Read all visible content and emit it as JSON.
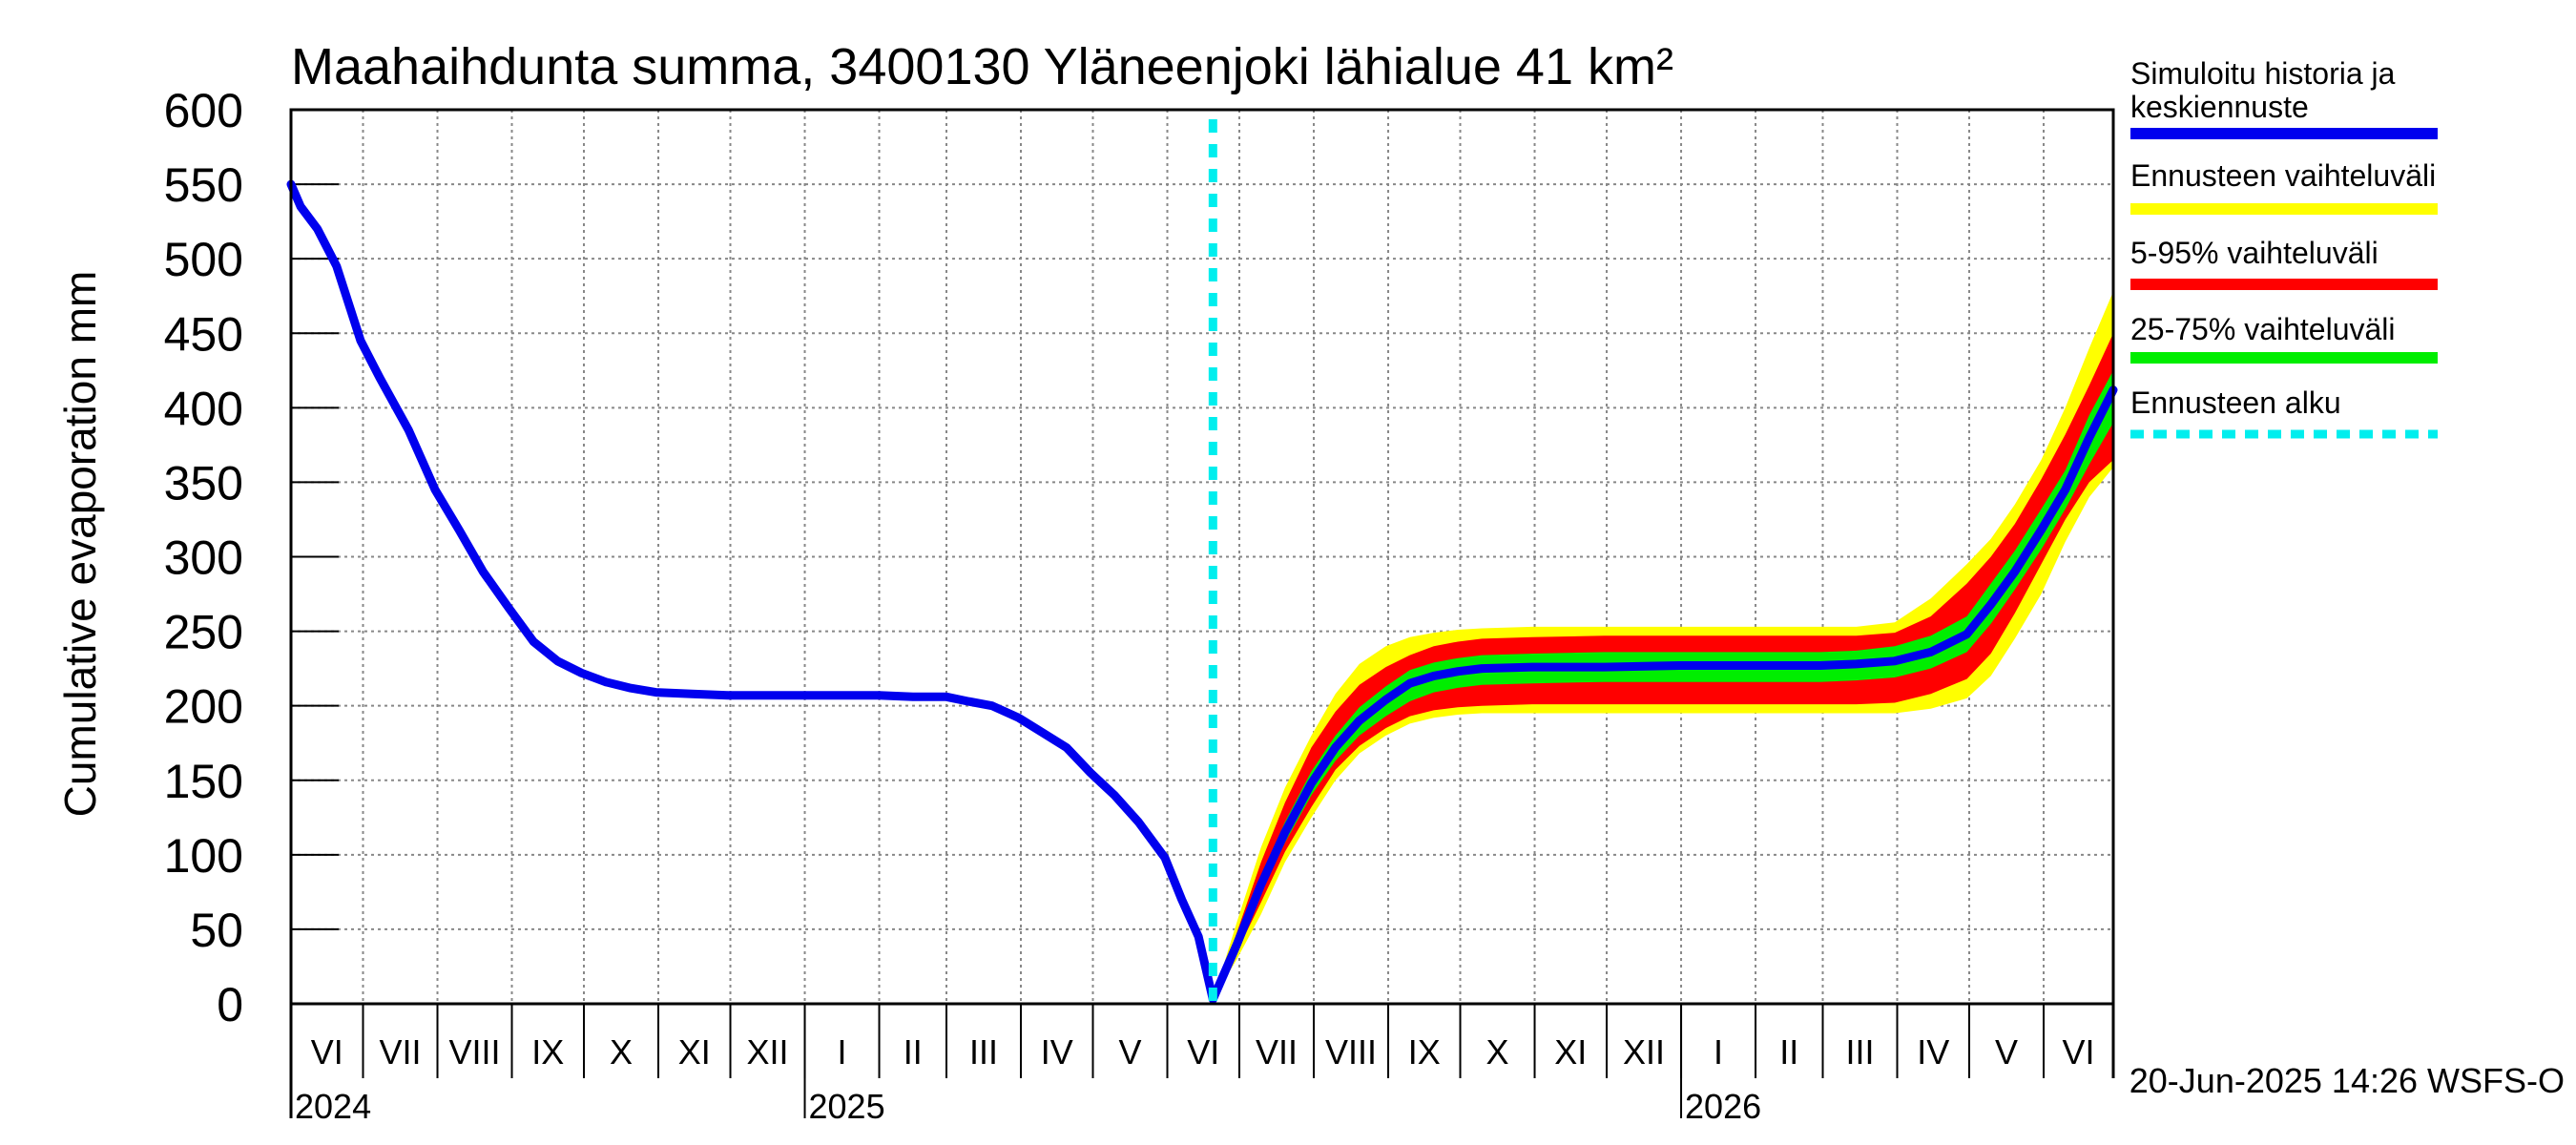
{
  "chart_data": {
    "type": "area",
    "title": "Maahaihdunta summa, 3400130 Yläneenjoki lähialue 41 km²",
    "ylabel": "Cumulative evaporation   mm",
    "xlabel": "",
    "ylim": [
      0,
      600
    ],
    "yticks": [
      0,
      50,
      100,
      150,
      200,
      250,
      300,
      350,
      400,
      450,
      500,
      550,
      600
    ],
    "grid": true,
    "legend_position": "right",
    "x_range": [
      "2024-06-01",
      "2026-06-30"
    ],
    "month_labels": [
      {
        "label": "VI",
        "start": "2024-06-01"
      },
      {
        "label": "VII",
        "start": "2024-07-01"
      },
      {
        "label": "VIII",
        "start": "2024-08-01"
      },
      {
        "label": "IX",
        "start": "2024-09-01"
      },
      {
        "label": "X",
        "start": "2024-10-01"
      },
      {
        "label": "XI",
        "start": "2024-11-01"
      },
      {
        "label": "XII",
        "start": "2024-12-01"
      },
      {
        "label": "I",
        "start": "2025-01-01"
      },
      {
        "label": "II",
        "start": "2025-02-01"
      },
      {
        "label": "III",
        "start": "2025-03-01"
      },
      {
        "label": "IV",
        "start": "2025-04-01"
      },
      {
        "label": "V",
        "start": "2025-05-01"
      },
      {
        "label": "VI",
        "start": "2025-06-01"
      },
      {
        "label": "VII",
        "start": "2025-07-01"
      },
      {
        "label": "VIII",
        "start": "2025-08-01"
      },
      {
        "label": "IX",
        "start": "2025-09-01"
      },
      {
        "label": "X",
        "start": "2025-10-01"
      },
      {
        "label": "XI",
        "start": "2025-11-01"
      },
      {
        "label": "XII",
        "start": "2025-12-01"
      },
      {
        "label": "I",
        "start": "2026-01-01"
      },
      {
        "label": "II",
        "start": "2026-02-01"
      },
      {
        "label": "III",
        "start": "2026-03-01"
      },
      {
        "label": "IV",
        "start": "2026-04-01"
      },
      {
        "label": "V",
        "start": "2026-05-01"
      },
      {
        "label": "VI",
        "start": "2026-06-01"
      }
    ],
    "year_labels": [
      {
        "label": "2024",
        "date": "2024-06-01"
      },
      {
        "label": "2025",
        "date": "2025-01-01"
      },
      {
        "label": "2026",
        "date": "2026-01-01"
      }
    ],
    "forecast_start": "2025-06-20",
    "series": [
      {
        "name": "Simuloitu historia ja keskiennuste",
        "color": "#0000ee",
        "x": [
          "2024-06-01",
          "2024-06-05",
          "2024-06-12",
          "2024-06-20",
          "2024-06-30",
          "2024-07-08",
          "2024-07-20",
          "2024-07-31",
          "2024-08-10",
          "2024-08-20",
          "2024-08-31",
          "2024-09-10",
          "2024-09-20",
          "2024-09-30",
          "2024-10-10",
          "2024-10-20",
          "2024-10-31",
          "2024-11-15",
          "2024-11-30",
          "2024-12-15",
          "2025-01-01",
          "2025-01-15",
          "2025-02-01",
          "2025-02-15",
          "2025-03-01",
          "2025-03-10",
          "2025-03-20",
          "2025-03-31",
          "2025-04-10",
          "2025-04-20",
          "2025-04-30",
          "2025-05-10",
          "2025-05-20",
          "2025-05-31",
          "2025-06-07",
          "2025-06-14",
          "2025-06-20",
          "2025-06-30",
          "2025-07-10",
          "2025-07-20",
          "2025-07-31",
          "2025-08-10",
          "2025-08-20",
          "2025-08-31",
          "2025-09-10",
          "2025-09-20",
          "2025-09-30",
          "2025-10-10",
          "2025-10-31",
          "2025-11-30",
          "2025-12-31",
          "2026-01-31",
          "2026-02-28",
          "2026-03-15",
          "2026-03-31",
          "2026-04-15",
          "2026-04-30",
          "2026-05-10",
          "2026-05-20",
          "2026-05-31",
          "2026-06-10",
          "2026-06-20",
          "2026-06-30"
        ],
        "values": [
          550,
          535,
          520,
          495,
          445,
          420,
          385,
          345,
          318,
          290,
          265,
          243,
          230,
          222,
          216,
          212,
          209,
          208,
          207,
          207,
          207,
          207,
          207,
          206,
          206,
          203,
          200,
          192,
          182,
          172,
          155,
          140,
          122,
          98,
          70,
          45,
          3,
          40,
          80,
          115,
          148,
          172,
          190,
          204,
          215,
          220,
          223,
          225,
          226,
          226,
          227,
          227,
          227,
          228,
          230,
          236,
          248,
          268,
          290,
          318,
          345,
          380,
          412
        ]
      },
      {
        "name": "Ennusteen vaihteluväli",
        "color": "#ffff00",
        "x": [
          "2025-06-20",
          "2025-06-30",
          "2025-07-10",
          "2025-07-20",
          "2025-07-31",
          "2025-08-10",
          "2025-08-20",
          "2025-08-31",
          "2025-09-10",
          "2025-09-20",
          "2025-09-30",
          "2025-10-10",
          "2025-10-31",
          "2025-11-30",
          "2025-12-31",
          "2026-01-31",
          "2026-02-28",
          "2026-03-15",
          "2026-03-31",
          "2026-04-15",
          "2026-04-30",
          "2026-05-10",
          "2026-05-20",
          "2026-05-31",
          "2026-06-10",
          "2026-06-20",
          "2026-06-30"
        ],
        "lower": [
          3,
          30,
          60,
          95,
          125,
          150,
          168,
          180,
          188,
          192,
          194,
          195,
          195,
          195,
          195,
          195,
          195,
          195,
          195,
          198,
          205,
          220,
          245,
          275,
          310,
          340,
          360
        ],
        "upper": [
          3,
          55,
          105,
          145,
          180,
          208,
          228,
          240,
          246,
          249,
          251,
          252,
          253,
          253,
          253,
          253,
          253,
          253,
          256,
          272,
          295,
          312,
          335,
          365,
          400,
          440,
          478
        ]
      },
      {
        "name": "5-95% vaihteluväli",
        "color": "#ff0000",
        "x": [
          "2025-06-20",
          "2025-06-30",
          "2025-07-10",
          "2025-07-20",
          "2025-07-31",
          "2025-08-10",
          "2025-08-20",
          "2025-08-31",
          "2025-09-10",
          "2025-09-20",
          "2025-09-30",
          "2025-10-10",
          "2025-10-31",
          "2025-11-30",
          "2025-12-31",
          "2026-01-31",
          "2026-02-28",
          "2026-03-15",
          "2026-03-31",
          "2026-04-15",
          "2026-04-30",
          "2026-05-10",
          "2026-05-20",
          "2026-05-31",
          "2026-06-10",
          "2026-06-20",
          "2026-06-30"
        ],
        "lower": [
          3,
          35,
          68,
          102,
          132,
          157,
          173,
          185,
          193,
          197,
          199,
          200,
          201,
          201,
          201,
          201,
          201,
          201,
          202,
          208,
          218,
          235,
          262,
          295,
          325,
          350,
          365
        ],
        "upper": [
          3,
          48,
          95,
          135,
          172,
          196,
          214,
          226,
          234,
          240,
          243,
          245,
          246,
          247,
          247,
          247,
          247,
          247,
          249,
          260,
          282,
          300,
          322,
          352,
          382,
          415,
          450
        ]
      },
      {
        "name": "25-75% vaihteluväli",
        "color": "#00ee00",
        "x": [
          "2025-06-20",
          "2025-06-30",
          "2025-07-10",
          "2025-07-20",
          "2025-07-31",
          "2025-08-10",
          "2025-08-20",
          "2025-08-31",
          "2025-09-10",
          "2025-09-20",
          "2025-09-30",
          "2025-10-10",
          "2025-10-31",
          "2025-11-30",
          "2025-12-31",
          "2026-01-31",
          "2026-02-28",
          "2026-03-15",
          "2026-03-31",
          "2026-04-15",
          "2026-04-30",
          "2026-05-10",
          "2026-05-20",
          "2026-05-31",
          "2026-06-10",
          "2026-06-20",
          "2026-06-30"
        ],
        "lower": [
          3,
          38,
          74,
          108,
          140,
          163,
          180,
          193,
          203,
          209,
          212,
          214,
          215,
          216,
          216,
          216,
          216,
          217,
          219,
          225,
          236,
          255,
          278,
          305,
          332,
          362,
          390
        ],
        "upper": [
          3,
          43,
          86,
          122,
          156,
          180,
          199,
          213,
          224,
          229,
          232,
          234,
          235,
          236,
          236,
          236,
          236,
          237,
          240,
          247,
          260,
          282,
          304,
          332,
          358,
          395,
          425
        ]
      },
      {
        "name": "Ennusteen alku",
        "color": "#00eeee"
      }
    ]
  },
  "legend": {
    "items": [
      {
        "label": "Simuloitu historia ja keskiennuste",
        "color": "#0000ee",
        "style": "solid"
      },
      {
        "label": "Ennusteen vaihteluväli",
        "color": "#ffff00",
        "style": "solid"
      },
      {
        "label": "5-95% vaihteluväli",
        "color": "#ff0000",
        "style": "solid"
      },
      {
        "label": "25-75% vaihteluväli",
        "color": "#00ee00",
        "style": "solid"
      },
      {
        "label": "Ennusteen alku",
        "color": "#00eeee",
        "style": "dashed"
      }
    ]
  },
  "footer": {
    "timestamp": "20-Jun-2025 14:26 WSFS-O"
  }
}
